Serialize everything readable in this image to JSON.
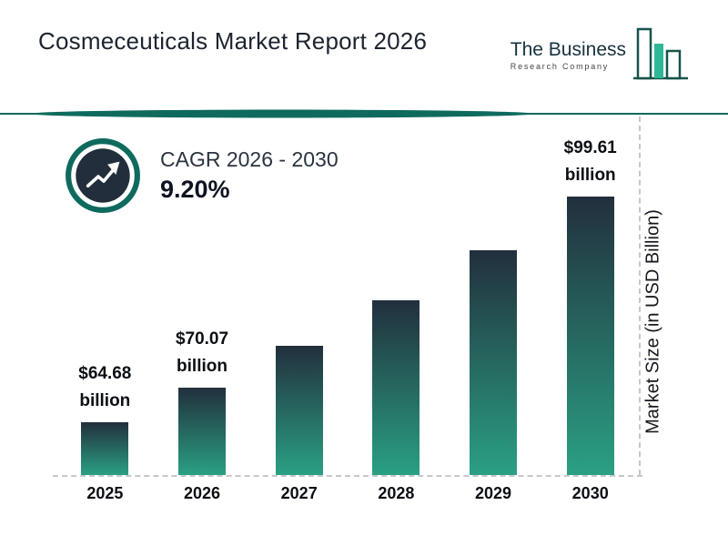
{
  "header": {
    "title": "Cosmeceuticals Market Report 2026",
    "logo": {
      "name": "The Business",
      "tagline": "Research Company"
    }
  },
  "cagr": {
    "label": "CAGR 2026 - 2030",
    "value": "9.20%"
  },
  "chart_data": {
    "type": "bar",
    "categories": [
      "2025",
      "2026",
      "2027",
      "2028",
      "2029",
      "2030"
    ],
    "values": [
      64.68,
      70.07,
      76.52,
      83.56,
      91.25,
      99.61
    ],
    "labeled_points": [
      {
        "index": 0,
        "amount": "$64.68",
        "unit": "billion"
      },
      {
        "index": 1,
        "amount": "$70.07",
        "unit": "billion"
      },
      {
        "index": 5,
        "amount": "$99.61",
        "unit": "billion"
      }
    ],
    "ylabel": "Market Size (in USD Billion)",
    "xlabel": "",
    "legend": false,
    "grid": false,
    "colors": {
      "bar_top": "#222f3d",
      "bar_bottom": "#2aa083",
      "accent": "#0f6a5e",
      "logo_fill": "#2eb898",
      "dashed_line": "#c4c8cc"
    }
  }
}
